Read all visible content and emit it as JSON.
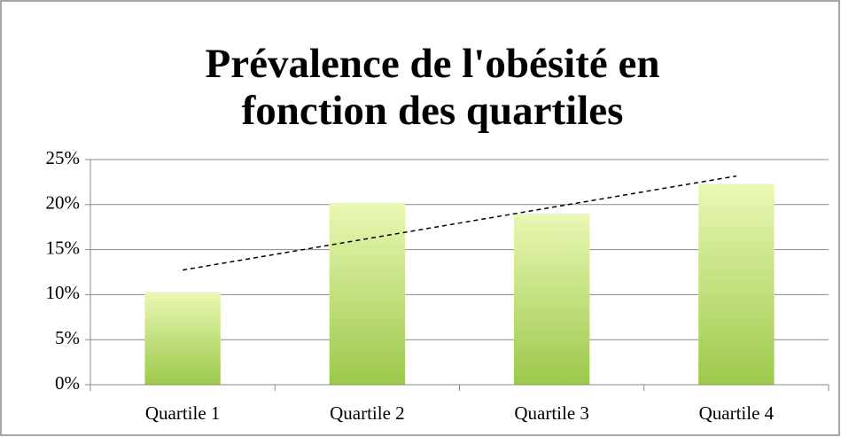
{
  "chart_data": {
    "type": "bar",
    "title": [
      "Prévalence de l'obésité en",
      "fonction des quartiles"
    ],
    "categories": [
      "Quartile 1",
      "Quartile 2",
      "Quartile 3",
      "Quartile 4"
    ],
    "values": [
      10.3,
      20.2,
      19.0,
      22.3
    ],
    "color": [
      "#eaf8b4",
      "#9cc84b"
    ],
    "ylim": [
      0,
      25
    ],
    "yticks": [
      {
        "value": 0,
        "label": "0%"
      },
      {
        "value": 5,
        "label": "5%"
      },
      {
        "value": 10,
        "label": "10%"
      },
      {
        "value": 15,
        "label": "15%"
      },
      {
        "value": 20,
        "label": "20%"
      },
      {
        "value": 25,
        "label": "25%"
      }
    ],
    "grid": true,
    "trendline": "linear"
  }
}
